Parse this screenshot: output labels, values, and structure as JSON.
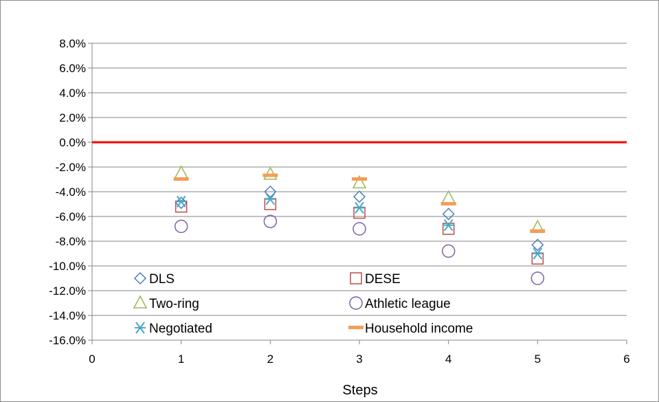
{
  "chart_data": {
    "type": "scatter",
    "title": "",
    "xlabel": "Steps",
    "ylabel": "",
    "xlim": [
      0,
      6
    ],
    "ylim": [
      -16,
      8
    ],
    "x_ticks": [
      0,
      1,
      2,
      3,
      4,
      5,
      6
    ],
    "x_tick_labels": [
      "0",
      "1",
      "2",
      "3",
      "4",
      "5",
      "6"
    ],
    "y_ticks": [
      8,
      6,
      4,
      2,
      0,
      -2,
      -4,
      -6,
      -8,
      -10,
      -12,
      -14,
      -16
    ],
    "y_tick_labels": [
      "8.0%",
      "6.0%",
      "4.0%",
      "2.0%",
      "0.0%",
      "-2.0%",
      "-4.0%",
      "-6.0%",
      "-8.0%",
      "-10.0%",
      "-12.0%",
      "-14.0%",
      "-16.0%"
    ],
    "grid": true,
    "reference_line": {
      "y": 0,
      "color": "#ff0000"
    },
    "legend_position": "inside-bottom",
    "series": [
      {
        "name": "DLS",
        "marker": "diamond",
        "color": "#4a7ebb",
        "x": [
          1,
          2,
          3,
          4,
          5
        ],
        "y": [
          -4.9,
          -4.0,
          -4.4,
          -5.8,
          -8.3
        ]
      },
      {
        "name": "DESE",
        "marker": "square",
        "color": "#be4b48",
        "x": [
          1,
          2,
          3,
          4,
          5
        ],
        "y": [
          -5.2,
          -5.0,
          -5.7,
          -7.0,
          -9.4
        ]
      },
      {
        "name": "Two-ring",
        "marker": "triangle",
        "color": "#98b954",
        "x": [
          1,
          2,
          3,
          4,
          5
        ],
        "y": [
          -2.5,
          -2.6,
          -3.3,
          -4.5,
          -6.9
        ]
      },
      {
        "name": "Athletic league",
        "marker": "circle",
        "color": "#7d60a0",
        "x": [
          1,
          2,
          3,
          4,
          5
        ],
        "y": [
          -6.8,
          -6.4,
          -7.0,
          -8.8,
          -11.0
        ]
      },
      {
        "name": "Negotiated",
        "marker": "asterisk",
        "color": "#46aac5",
        "x": [
          1,
          2,
          3,
          4,
          5
        ],
        "y": [
          -4.8,
          -4.6,
          -5.3,
          -6.7,
          -9.0
        ]
      },
      {
        "name": "Household income",
        "marker": "dash",
        "color": "#f59d56",
        "x": [
          1,
          2,
          3,
          4,
          5
        ],
        "y": [
          -3.0,
          -2.7,
          -3.0,
          -5.0,
          -7.2
        ]
      }
    ]
  }
}
